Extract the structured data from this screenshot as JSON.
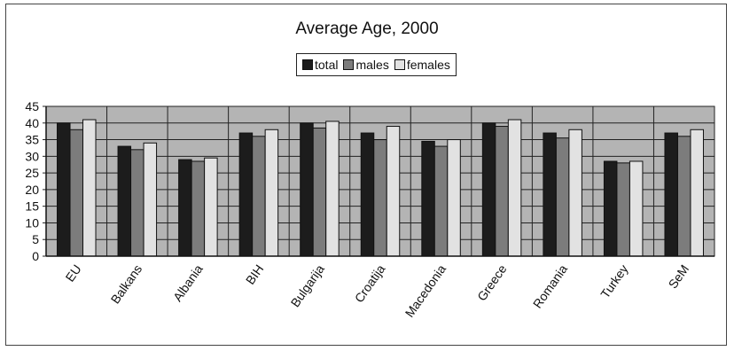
{
  "chart_data": {
    "type": "bar",
    "title": "Average Age, 2000",
    "xlabel": "",
    "ylabel": "",
    "categories": [
      "EU",
      "Balkans",
      "Albania",
      "BIH",
      "Bulgarija",
      "Croatija",
      "Macedonia",
      "Greece",
      "Romania",
      "Turkey",
      "SeM"
    ],
    "series": [
      {
        "name": "total",
        "color": "#1c1c1c",
        "values": [
          40,
          33,
          29,
          37,
          40,
          37,
          34.5,
          40,
          37,
          28.5,
          37
        ]
      },
      {
        "name": "males",
        "color": "#7c7c7c",
        "values": [
          38,
          32,
          28.5,
          36,
          38.5,
          35,
          33,
          39,
          35.5,
          28,
          36
        ]
      },
      {
        "name": "females",
        "color": "#e2e2e2",
        "values": [
          41,
          34,
          29.5,
          38,
          40.5,
          39,
          35,
          41,
          38,
          28.5,
          38
        ]
      }
    ],
    "ylim": [
      0,
      45
    ],
    "yticks": [
      0,
      5,
      10,
      15,
      20,
      25,
      30,
      35,
      40,
      45
    ],
    "grid": true,
    "legend_position": "top-center",
    "plot_background": "#b4b4b4"
  }
}
